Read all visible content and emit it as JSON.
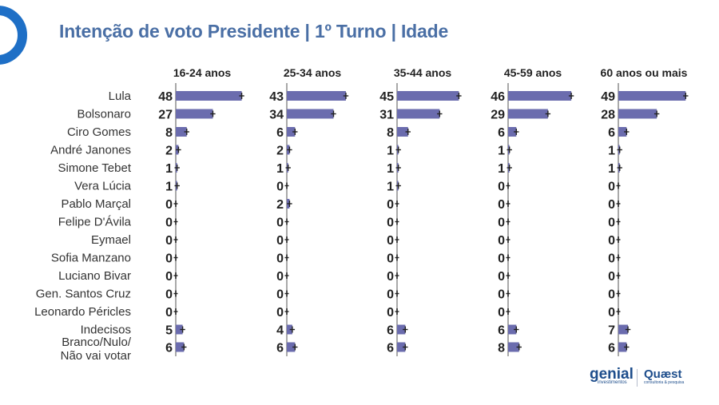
{
  "title": "Intenção de voto Presidente | 1º Turno | Idade",
  "logos": {
    "genial": {
      "name": "genial",
      "tagline": "investimentos"
    },
    "quaest": {
      "name": "Quæst",
      "tagline": "consultoria & pesquisa"
    }
  },
  "colors": {
    "bar": "#6b6cae",
    "title": "#4a6fa5",
    "ring": "#1e6fc6"
  },
  "chart_data": {
    "type": "bar",
    "orientation": "horizontal",
    "candidates": [
      "Lula",
      "Bolsonaro",
      "Ciro Gomes",
      "André Janones",
      "Simone Tebet",
      "Vera Lúcia",
      "Pablo Marçal",
      "Felipe D'Ávila",
      "Eymael",
      "Sofia Manzano",
      "Luciano Bivar",
      "Gen. Santos Cruz",
      "Leonardo Péricles",
      "Indecisos",
      "Branco/Nulo/\nNão vai votar"
    ],
    "panels": [
      {
        "name": "16-24 anos",
        "values": [
          48,
          27,
          8,
          2,
          1,
          1,
          0,
          0,
          0,
          0,
          0,
          0,
          0,
          5,
          6
        ]
      },
      {
        "name": "25-34 anos",
        "values": [
          43,
          34,
          6,
          2,
          1,
          0,
          2,
          0,
          0,
          0,
          0,
          0,
          0,
          4,
          6
        ]
      },
      {
        "name": "35-44 anos",
        "values": [
          45,
          31,
          8,
          1,
          1,
          1,
          0,
          0,
          0,
          0,
          0,
          0,
          0,
          6,
          6
        ]
      },
      {
        "name": "45-59 anos",
        "values": [
          46,
          29,
          6,
          1,
          1,
          0,
          0,
          0,
          0,
          0,
          0,
          0,
          0,
          6,
          8
        ]
      },
      {
        "name": "60 anos ou mais",
        "values": [
          49,
          28,
          6,
          1,
          1,
          0,
          0,
          0,
          0,
          0,
          0,
          0,
          0,
          7,
          6
        ]
      }
    ],
    "error_bars": true
  }
}
